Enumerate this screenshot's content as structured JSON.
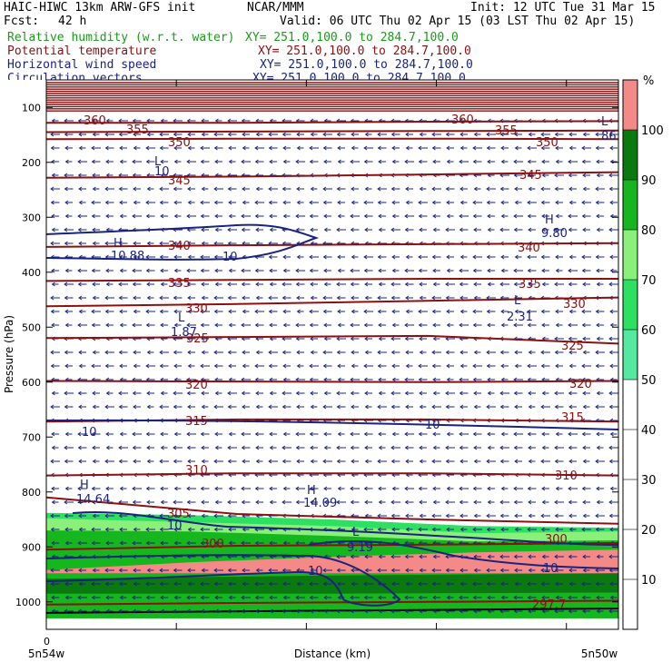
{
  "header": {
    "model": "HAIC-HIWC 13km ARW-GFS init",
    "org": "NCAR/MMM",
    "init": "Init: 12 UTC Tue 31 Mar 15",
    "fcst_label": "Fcst:",
    "fcst_value": "42 h",
    "valid": "Valid: 06 UTC Thu 02 Apr 15 (03 LST Thu 02 Apr 15)"
  },
  "fields": [
    {
      "name": "Relative humidity (w.r.t. water)",
      "xy": "XY= 251.0,100.0 to 284.7,100.0",
      "color": "#1a9a1a"
    },
    {
      "name": "Potential temperature",
      "xy": "XY= 251.0,100.0 to 284.7,100.0",
      "color": "#8b1010"
    },
    {
      "name": "Horizontal wind speed",
      "xy": "XY= 251.0,100.0 to 284.7,100.0",
      "color": "#1a237e"
    },
    {
      "name": "Circulation vectors",
      "xy": "XY= 251.0,100.0 to 284.7,100.0",
      "color": "#1a237e"
    }
  ],
  "chart_data": {
    "type": "cross-section",
    "xlabel": "Distance (km)",
    "ylabel": "Pressure (hPa)",
    "x_zero_label": "0",
    "x_left_label": "5n54w",
    "x_right_label": "5n50w",
    "y_ticks": [
      100,
      200,
      300,
      400,
      500,
      600,
      700,
      800,
      900,
      1000
    ],
    "ylim": [
      1050,
      50
    ],
    "colorbar": {
      "unit": "%",
      "ticks": [
        10,
        20,
        30,
        40,
        50,
        60,
        70,
        80,
        90,
        100
      ],
      "bins": [
        {
          "from": 50,
          "to": 60,
          "color": "#55e8a0"
        },
        {
          "from": 60,
          "to": 70,
          "color": "#2ee062"
        },
        {
          "from": 70,
          "to": 80,
          "color": "#8af07a"
        },
        {
          "from": 80,
          "to": 90,
          "color": "#16b61e"
        },
        {
          "from": 90,
          "to": 100,
          "color": "#0a7a10"
        },
        {
          "from": 100,
          "to": 110,
          "color": "#f48a88"
        }
      ]
    },
    "theta_contours": [
      {
        "value": "360",
        "p": [
          128,
          128,
          126,
          125
        ]
      },
      {
        "value": "355",
        "p": [
          145,
          144,
          143,
          142
        ]
      },
      {
        "value": "350",
        "p": [
          158,
          157,
          157,
          158
        ]
      },
      {
        "value": "345",
        "p": [
          228,
          226,
          222,
          218
        ]
      },
      {
        "value": "340",
        "p": [
          354,
          351,
          349,
          347
        ]
      },
      {
        "value": "335",
        "p": [
          416,
          414,
          412,
          412
        ]
      },
      {
        "value": "330",
        "p": [
          462,
          458,
          452,
          446
        ]
      },
      {
        "value": "325",
        "p": [
          520,
          518,
          516,
          530
        ]
      },
      {
        "value": "320",
        "p": [
          598,
          599,
          600,
          598
        ]
      },
      {
        "value": "315",
        "p": [
          672,
          668,
          668,
          672
        ]
      },
      {
        "value": "310",
        "p": [
          770,
          766,
          766,
          770
        ]
      },
      {
        "value": "305",
        "p": [
          810,
          840,
          850,
          858
        ]
      },
      {
        "value": "300",
        "p": [
          905,
          898,
          896,
          893
        ]
      },
      {
        "value": "297.7",
        "p": [
          1005,
          1002,
          1000,
          998
        ]
      }
    ],
    "wind_labels": [
      "10",
      "10",
      "10",
      "10",
      "10",
      "10",
      "10"
    ],
    "extrema": [
      {
        "type": "H",
        "value": "10.88"
      },
      {
        "type": "H",
        "value": "9.80"
      },
      {
        "type": "L",
        "value": "10"
      },
      {
        "type": "L",
        "value": ".86"
      },
      {
        "type": "L",
        "value": "1.87"
      },
      {
        "type": "L",
        "value": "2.31"
      },
      {
        "type": "H",
        "value": "14.64"
      },
      {
        "type": "H",
        "value": "14.09"
      },
      {
        "type": "L",
        "value": "9.19"
      }
    ],
    "rh_bands": [
      {
        "color": "#f48a88",
        "top": [
          942,
          928,
          918,
          910,
          905
        ],
        "bottom": [
          948,
          948,
          948,
          948,
          948
        ]
      },
      {
        "color": "#16b61e",
        "top": [
          855,
          858,
          865,
          880,
          878
        ],
        "bottom": [
          1030,
          1030,
          1030,
          1030,
          1030
        ]
      }
    ]
  }
}
